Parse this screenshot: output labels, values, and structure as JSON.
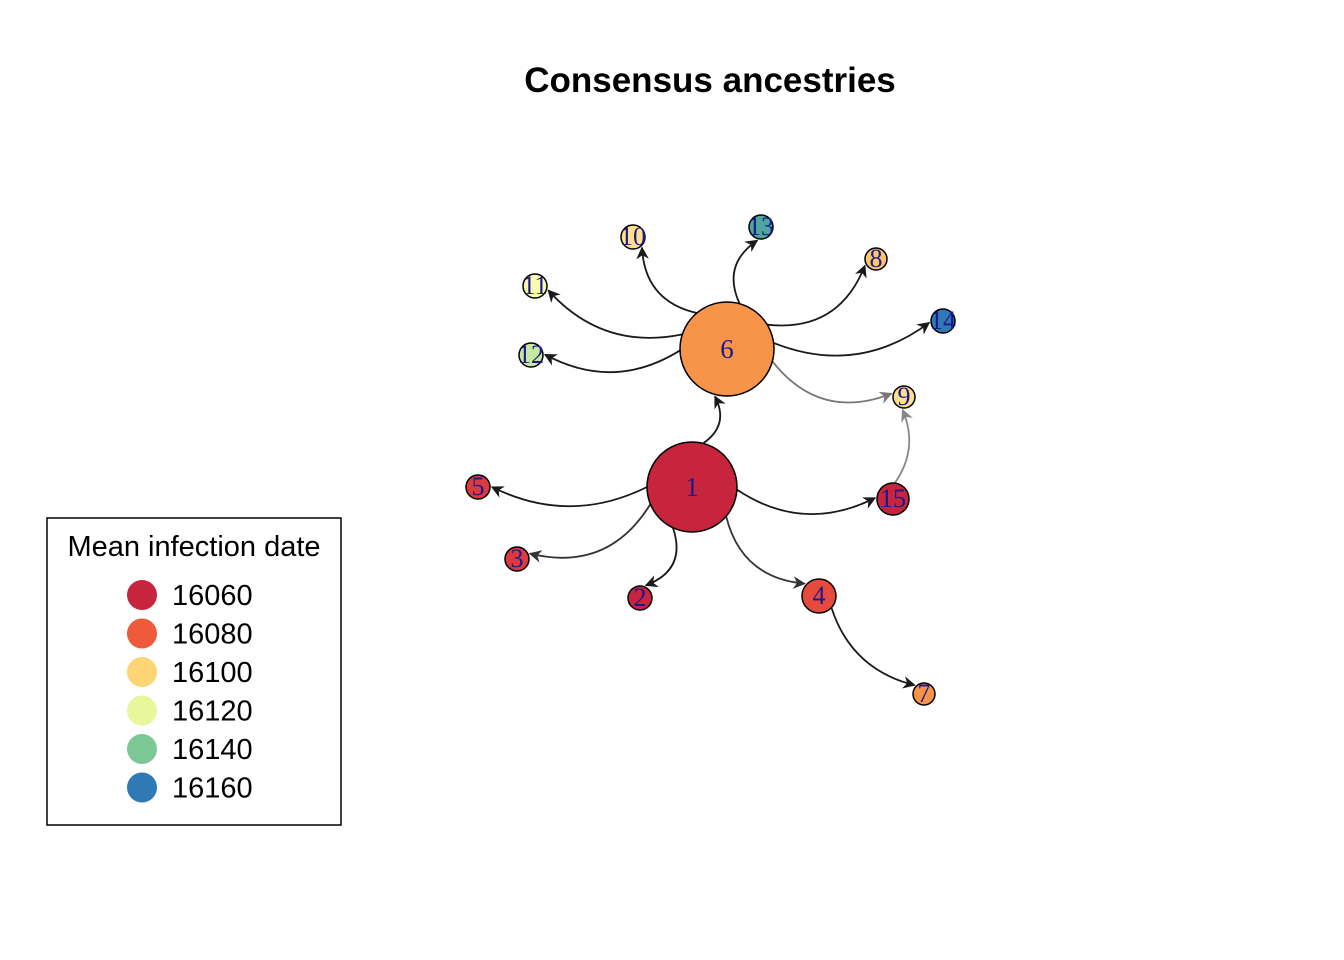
{
  "title": "Consensus ancestries",
  "legend": {
    "title": "Mean infection date",
    "items": [
      {
        "label": "16060",
        "color": "#c7243e"
      },
      {
        "label": "16080",
        "color": "#ef5a3b"
      },
      {
        "label": "16100",
        "color": "#fdd574"
      },
      {
        "label": "16120",
        "color": "#e8f79c"
      },
      {
        "label": "16140",
        "color": "#7cc894"
      },
      {
        "label": "16160",
        "color": "#2f7ab5"
      }
    ]
  },
  "nodes": [
    {
      "id": "1",
      "label": "1",
      "color": "#c7243e"
    },
    {
      "id": "2",
      "label": "2",
      "color": "#c7243e"
    },
    {
      "id": "3",
      "label": "3",
      "color": "#dc3a40"
    },
    {
      "id": "4",
      "label": "4",
      "color": "#e64a3c"
    },
    {
      "id": "5",
      "label": "5",
      "color": "#dc3a40"
    },
    {
      "id": "6",
      "label": "6",
      "color": "#f89449"
    },
    {
      "id": "7",
      "label": "7",
      "color": "#f89449"
    },
    {
      "id": "8",
      "label": "8",
      "color": "#fdc66e"
    },
    {
      "id": "9",
      "label": "9",
      "color": "#fee08b"
    },
    {
      "id": "10",
      "label": "10",
      "color": "#fee08b"
    },
    {
      "id": "11",
      "label": "11",
      "color": "#fafab0"
    },
    {
      "id": "12",
      "label": "12",
      "color": "#c6e8a0"
    },
    {
      "id": "13",
      "label": "13",
      "color": "#4fa69a"
    },
    {
      "id": "14",
      "label": "14",
      "color": "#2f7ab5"
    },
    {
      "id": "15",
      "label": "15",
      "color": "#c7243e"
    }
  ],
  "edges": [
    {
      "from": "1",
      "to": "6",
      "color": "#1a1a1a"
    },
    {
      "from": "1",
      "to": "5",
      "color": "#1a1a1a"
    },
    {
      "from": "1",
      "to": "3",
      "color": "#333333"
    },
    {
      "from": "1",
      "to": "2",
      "color": "#1a1a1a"
    },
    {
      "from": "1",
      "to": "4",
      "color": "#333333"
    },
    {
      "from": "1",
      "to": "15",
      "color": "#1a1a1a"
    },
    {
      "from": "4",
      "to": "7",
      "color": "#1a1a1a"
    },
    {
      "from": "15",
      "to": "9",
      "color": "#888888"
    },
    {
      "from": "6",
      "to": "10",
      "color": "#1a1a1a"
    },
    {
      "from": "6",
      "to": "11",
      "color": "#1a1a1a"
    },
    {
      "from": "6",
      "to": "12",
      "color": "#1a1a1a"
    },
    {
      "from": "6",
      "to": "13",
      "color": "#1a1a1a"
    },
    {
      "from": "6",
      "to": "8",
      "color": "#1a1a1a"
    },
    {
      "from": "6",
      "to": "14",
      "color": "#1a1a1a"
    },
    {
      "from": "6",
      "to": "9",
      "color": "#777777"
    }
  ]
}
